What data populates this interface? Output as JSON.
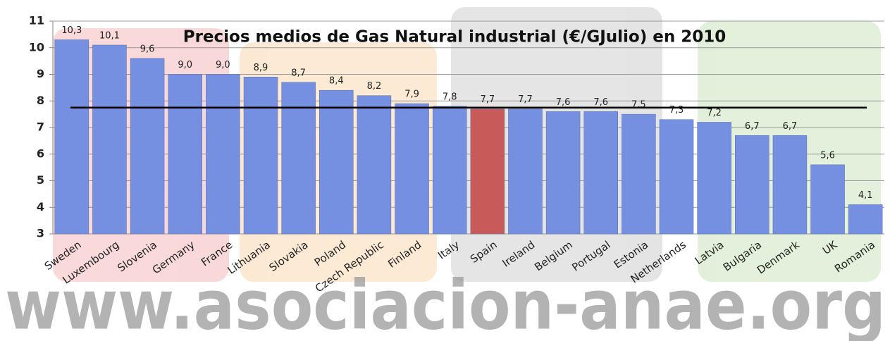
{
  "chart_data": {
    "type": "bar",
    "title": "Precios medios de Gas Natural industrial (€/GJulio) en 2010",
    "categories": [
      "Sweden",
      "Luxembourg",
      "Slovenia",
      "Germany",
      "France",
      "Lithuania",
      "Slovakia",
      "Poland",
      "Czech Republic",
      "Finland",
      "Italy",
      "Spain",
      "Ireland",
      "Belgium",
      "Portugal",
      "Estonia",
      "Netherlands",
      "Latvia",
      "Bulgaria",
      "Denmark",
      "UK",
      "Romania"
    ],
    "values": [
      10.3,
      10.1,
      9.6,
      9.0,
      9.0,
      8.9,
      8.7,
      8.4,
      8.2,
      7.9,
      7.8,
      7.7,
      7.7,
      7.6,
      7.6,
      7.5,
      7.3,
      7.2,
      6.7,
      6.7,
      5.6,
      4.1
    ],
    "value_labels": [
      "10,3",
      "10,1",
      "9,6",
      "9,0",
      "9,0",
      "8,9",
      "8,7",
      "8,4",
      "8,2",
      "7,9",
      "7,8",
      "7,7",
      "7,7",
      "7,6",
      "7,6",
      "7,5",
      "7,3",
      "7,2",
      "6,7",
      "6,7",
      "5,6",
      "4,1"
    ],
    "colors": [
      "#7590e0",
      "#7590e0",
      "#7590e0",
      "#7590e0",
      "#7590e0",
      "#7590e0",
      "#7590e0",
      "#7590e0",
      "#7590e0",
      "#7590e0",
      "#7590e0",
      "#c85a5a",
      "#7590e0",
      "#7590e0",
      "#7590e0",
      "#7590e0",
      "#7590e0",
      "#7590e0",
      "#7590e0",
      "#7590e0",
      "#7590e0",
      "#7590e0"
    ],
    "ylim": [
      3,
      11
    ],
    "yticks": [
      3,
      4,
      5,
      6,
      7,
      8,
      9,
      10,
      11
    ],
    "grid": true,
    "hline": 7.75,
    "watermark": "www.asociacion-anae.org"
  }
}
